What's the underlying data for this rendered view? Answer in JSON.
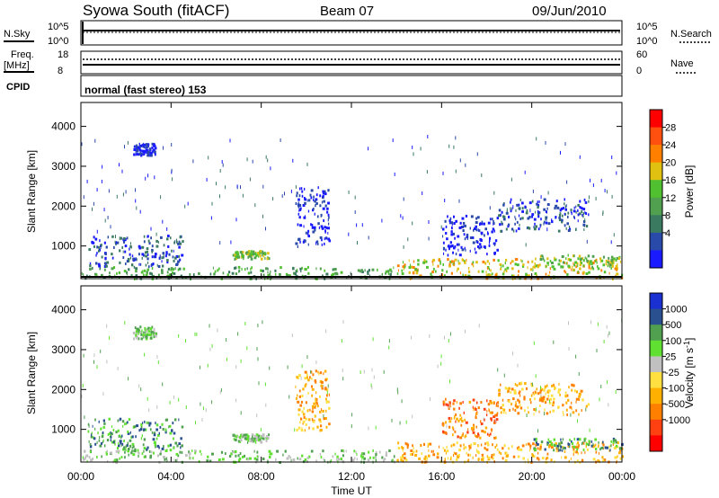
{
  "header": {
    "title": "Syowa South (fitACF)",
    "beam": "Beam 07",
    "date": "09/Jun/2010"
  },
  "top_panels": {
    "nsky_label": "N.Sky",
    "nsky_ticks": [
      "10^5",
      "10^0"
    ],
    "nsearch_label": "N.Search",
    "nsearch_ticks": [
      "10^5",
      "10^0"
    ],
    "freq_label": "Freq.",
    "freq_unit": "[MHz]",
    "freq_ticks": [
      "18",
      "8"
    ],
    "nave_label": "Nave",
    "nave_ticks": [
      "60",
      "0"
    ],
    "cpid_label": "CPID",
    "cpid_text": "normal (fast stereo) 153"
  },
  "colors": {
    "power_scale": [
      "#1a1aff",
      "#2a4aaa",
      "#3a7a60",
      "#50a050",
      "#50c030",
      "#e0c010",
      "#ff8000",
      "#ff5010",
      "#ff0000"
    ],
    "velocity_scale": [
      "#ff0000",
      "#ff4010",
      "#ff8000",
      "#ffb000",
      "#ffe040",
      "#c0c0c0",
      "#60e030",
      "#50a050",
      "#2a5090",
      "#1a30d0"
    ]
  },
  "chart_data": [
    {
      "type": "heatmap",
      "name": "power-panel",
      "ylabel": "Slant Range [km]",
      "yticks": [
        1000,
        2000,
        3000,
        4000
      ],
      "ylim": [
        180,
        4600
      ],
      "xlim": [
        0,
        24
      ],
      "colorbar": {
        "label": "Power [dB]",
        "ticks": [
          "4",
          "8",
          "12",
          "16",
          "20",
          "24",
          "28"
        ]
      },
      "regions": [
        {
          "t0": 0.0,
          "t1": 14.0,
          "r0": 200,
          "r1": 500,
          "level": 3
        },
        {
          "t0": 0.3,
          "t1": 4.5,
          "r0": 500,
          "r1": 1300,
          "level": 1
        },
        {
          "t0": 2.3,
          "t1": 3.3,
          "r0": 3300,
          "r1": 3600,
          "level": 0
        },
        {
          "t0": 6.7,
          "t1": 8.3,
          "r0": 700,
          "r1": 900,
          "level": 4
        },
        {
          "t0": 9.5,
          "t1": 11.0,
          "r0": 1000,
          "r1": 2500,
          "level": 0
        },
        {
          "t0": 14.0,
          "t1": 24.0,
          "r0": 200,
          "r1": 700,
          "level": 5
        },
        {
          "t0": 16.0,
          "t1": 18.5,
          "r0": 800,
          "r1": 1800,
          "level": 0
        },
        {
          "t0": 18.5,
          "t1": 22.5,
          "r0": 1400,
          "r1": 2200,
          "level": 1
        },
        {
          "t0": 20.0,
          "t1": 24.0,
          "r0": 500,
          "r1": 800,
          "level": 4
        }
      ]
    },
    {
      "type": "heatmap",
      "name": "velocity-panel",
      "xlabel": "Time UT",
      "xticks": [
        "00:00",
        "04:00",
        "08:00",
        "12:00",
        "16:00",
        "20:00",
        "00:00"
      ],
      "ylabel": "Slant Range [km]",
      "yticks": [
        1000,
        2000,
        3000,
        4000
      ],
      "ylim": [
        180,
        4600
      ],
      "xlim": [
        0,
        24
      ],
      "colorbar": {
        "label": "Velocity [m s",
        "label_sup": "-1",
        "label_end": "]",
        "ticks": [
          "1000",
          "500",
          "100",
          "25",
          "-25",
          "-100",
          "-500",
          "-1000"
        ]
      },
      "regions": [
        {
          "t0": 0.0,
          "t1": 14.0,
          "r0": 200,
          "r1": 500,
          "level": 6
        },
        {
          "t0": 0.3,
          "t1": 4.5,
          "r0": 500,
          "r1": 1300,
          "level": 7
        },
        {
          "t0": 2.3,
          "t1": 3.3,
          "r0": 3300,
          "r1": 3600,
          "level": 6
        },
        {
          "t0": 6.7,
          "t1": 8.3,
          "r0": 700,
          "r1": 900,
          "level": 6
        },
        {
          "t0": 9.5,
          "t1": 11.0,
          "r0": 1000,
          "r1": 2500,
          "level": 3
        },
        {
          "t0": 14.0,
          "t1": 24.0,
          "r0": 200,
          "r1": 700,
          "level": 3
        },
        {
          "t0": 16.0,
          "t1": 18.5,
          "r0": 800,
          "r1": 1800,
          "level": 2
        },
        {
          "t0": 18.5,
          "t1": 22.5,
          "r0": 1400,
          "r1": 2200,
          "level": 3
        },
        {
          "t0": 20.0,
          "t1": 24.0,
          "r0": 500,
          "r1": 800,
          "level": 7
        }
      ]
    }
  ]
}
